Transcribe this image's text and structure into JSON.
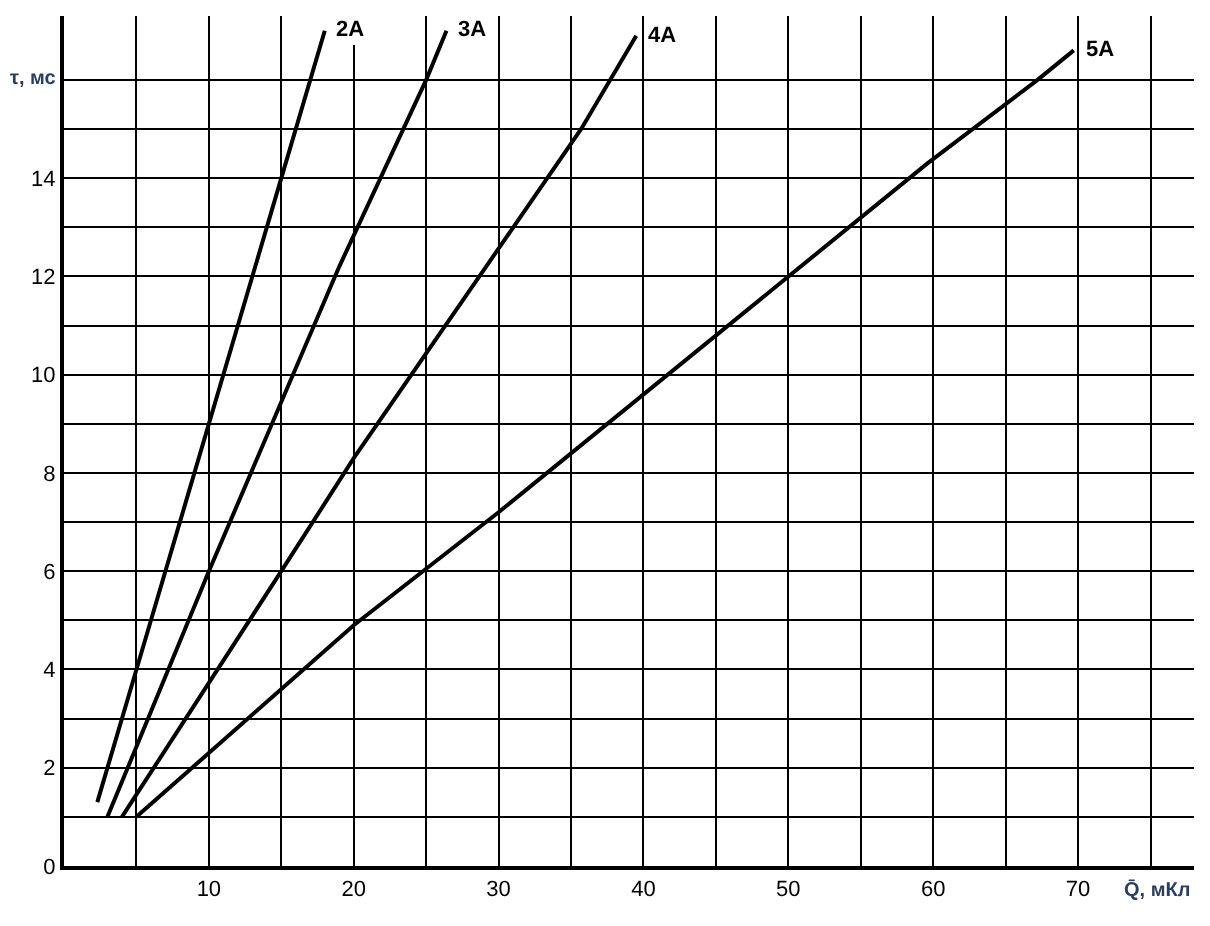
{
  "chart_data": {
    "type": "line",
    "xlabel": "Q̄, мКл",
    "ylabel": "τ, мс",
    "series": [
      {
        "name": "2А",
        "color": "#000000",
        "x": [
          2.3,
          5,
          15,
          18
        ],
        "values": [
          1.3,
          4,
          14,
          17
        ]
      },
      {
        "name": "3А",
        "color": "#000000",
        "x": [
          3,
          10,
          19,
          25,
          26.4
        ],
        "values": [
          1,
          6,
          12.2,
          16,
          17
        ]
      },
      {
        "name": "4А",
        "color": "#000000",
        "x": [
          4,
          15,
          20,
          35.7,
          39.5
        ],
        "values": [
          1,
          6,
          8.3,
          15,
          16.9
        ]
      },
      {
        "name": "5А",
        "color": "#000000",
        "x": [
          5,
          20,
          30,
          59.6,
          67.2,
          69.7
        ],
        "values": [
          1,
          4.9,
          7.2,
          14.3,
          16,
          16.6
        ]
      }
    ],
    "xlim": [
      0,
      78
    ],
    "ylim": [
      0,
      17.3
    ],
    "xticks": [
      {
        "value": 0,
        "label": null
      },
      {
        "value": 5,
        "label": null
      },
      10,
      {
        "value": 15,
        "label": null
      },
      20,
      {
        "value": 25,
        "label": null
      },
      30,
      {
        "value": 35,
        "label": null
      },
      40,
      {
        "value": 45,
        "label": null
      },
      50,
      {
        "value": 55,
        "label": null
      },
      60,
      {
        "value": 65,
        "label": null
      },
      70,
      {
        "value": 75,
        "label": null
      }
    ],
    "yticks": [
      0,
      {
        "value": 1,
        "label": null
      },
      2,
      {
        "value": 3,
        "label": null
      },
      4,
      {
        "value": 5,
        "label": null
      },
      6,
      {
        "value": 7,
        "label": null
      },
      8,
      {
        "value": 9,
        "label": null
      },
      10,
      {
        "value": 11,
        "label": null
      },
      12,
      {
        "value": 13,
        "label": null
      },
      14,
      {
        "value": 15,
        "label": null
      },
      {
        "value": 16,
        "label": null
      }
    ],
    "grid": true,
    "marker": "none",
    "line_style": "solid",
    "legend": false
  }
}
